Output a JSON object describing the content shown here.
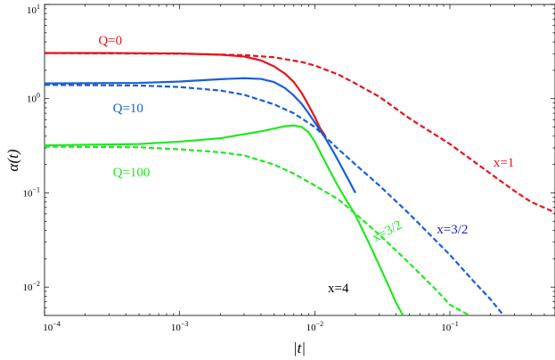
{
  "chart_data": {
    "type": "line",
    "xlabel": "|t|",
    "ylabel": "α(t)",
    "xscale": "log",
    "yscale": "log",
    "xlim": [
      0.0001,
      0.6
    ],
    "ylim": [
      0.005,
      10
    ],
    "x_ticks": [
      {
        "value": 0.0001,
        "label_base": "10",
        "label_exp": "−4"
      },
      {
        "value": 0.001,
        "label_base": "10",
        "label_exp": "−3"
      },
      {
        "value": 0.01,
        "label_base": "10",
        "label_exp": "−2"
      },
      {
        "value": 0.1,
        "label_base": "10",
        "label_exp": "−1"
      }
    ],
    "y_ticks": [
      {
        "value": 10,
        "label_base": "10",
        "label_exp": "1"
      },
      {
        "value": 1,
        "label_base": "10",
        "label_exp": "0"
      },
      {
        "value": 0.1,
        "label_base": "10",
        "label_exp": "−1"
      },
      {
        "value": 0.01,
        "label_base": "10",
        "label_exp": "−2"
      }
    ],
    "grid": false,
    "series": [
      {
        "color": "#e8141c",
        "dash": false,
        "points": [
          [
            0.0001,
            3.05
          ],
          [
            0.0003,
            3.05
          ],
          [
            0.001,
            3.02
          ],
          [
            0.002,
            2.93
          ],
          [
            0.003,
            2.8
          ],
          [
            0.004,
            2.55
          ],
          [
            0.005,
            2.2
          ],
          [
            0.006,
            1.85
          ],
          [
            0.007,
            1.5
          ],
          [
            0.008,
            1.15
          ],
          [
            0.009,
            0.85
          ],
          [
            0.01,
            0.64
          ],
          [
            0.011,
            0.48
          ],
          [
            0.012,
            0.4
          ]
        ]
      },
      {
        "color": "#1a5fd8",
        "dash": false,
        "points": [
          [
            0.0001,
            1.45
          ],
          [
            0.0005,
            1.47
          ],
          [
            0.001,
            1.52
          ],
          [
            0.002,
            1.61
          ],
          [
            0.003,
            1.65
          ],
          [
            0.004,
            1.62
          ],
          [
            0.005,
            1.5
          ],
          [
            0.006,
            1.3
          ],
          [
            0.007,
            1.08
          ],
          [
            0.008,
            0.88
          ],
          [
            0.009,
            0.7
          ],
          [
            0.01,
            0.56
          ],
          [
            0.012,
            0.38
          ],
          [
            0.014,
            0.26
          ],
          [
            0.017,
            0.155
          ],
          [
            0.02,
            0.1
          ]
        ]
      },
      {
        "color": "#22e822",
        "dash": false,
        "points": [
          [
            0.0001,
            0.32
          ],
          [
            0.0005,
            0.33
          ],
          [
            0.001,
            0.35
          ],
          [
            0.002,
            0.38
          ],
          [
            0.004,
            0.45
          ],
          [
            0.006,
            0.51
          ],
          [
            0.007,
            0.52
          ],
          [
            0.008,
            0.5
          ],
          [
            0.009,
            0.44
          ],
          [
            0.01,
            0.35
          ],
          [
            0.012,
            0.21
          ],
          [
            0.015,
            0.115
          ],
          [
            0.02,
            0.058
          ],
          [
            0.025,
            0.03
          ],
          [
            0.03,
            0.017
          ],
          [
            0.035,
            0.0105
          ],
          [
            0.04,
            0.0068
          ],
          [
            0.045,
            0.005
          ]
        ]
      },
      {
        "color": "#e8141c",
        "dash": true,
        "points": [
          [
            0.0001,
            3.05
          ],
          [
            0.001,
            3.0
          ],
          [
            0.003,
            2.9
          ],
          [
            0.005,
            2.75
          ],
          [
            0.008,
            2.45
          ],
          [
            0.01,
            2.25
          ],
          [
            0.015,
            1.8
          ],
          [
            0.02,
            1.45
          ],
          [
            0.03,
            1.05
          ],
          [
            0.05,
            0.62
          ],
          [
            0.1,
            0.33
          ],
          [
            0.2,
            0.16
          ],
          [
            0.3,
            0.105
          ],
          [
            0.4,
            0.08
          ],
          [
            0.6,
            0.062
          ]
        ]
      },
      {
        "color": "#1a5fd8",
        "dash": true,
        "points": [
          [
            0.0001,
            1.4
          ],
          [
            0.0005,
            1.38
          ],
          [
            0.001,
            1.33
          ],
          [
            0.002,
            1.22
          ],
          [
            0.003,
            1.1
          ],
          [
            0.005,
            0.87
          ],
          [
            0.007,
            0.7
          ],
          [
            0.01,
            0.5
          ],
          [
            0.015,
            0.29
          ],
          [
            0.02,
            0.2
          ],
          [
            0.03,
            0.12
          ],
          [
            0.05,
            0.06
          ],
          [
            0.1,
            0.022
          ],
          [
            0.15,
            0.0115
          ],
          [
            0.2,
            0.0074
          ],
          [
            0.25,
            0.005
          ]
        ]
      },
      {
        "color": "#22e822",
        "dash": true,
        "points": [
          [
            0.0001,
            0.31
          ],
          [
            0.0005,
            0.305
          ],
          [
            0.001,
            0.29
          ],
          [
            0.002,
            0.27
          ],
          [
            0.003,
            0.25
          ],
          [
            0.005,
            0.2
          ],
          [
            0.007,
            0.16
          ],
          [
            0.01,
            0.12
          ],
          [
            0.015,
            0.085
          ],
          [
            0.02,
            0.06
          ],
          [
            0.03,
            0.036
          ],
          [
            0.05,
            0.018
          ],
          [
            0.08,
            0.0092
          ],
          [
            0.1,
            0.0065
          ],
          [
            0.14,
            0.005
          ]
        ]
      }
    ],
    "annotations": [
      {
        "text": "Q=0",
        "x": 0.00025,
        "y": 3.75,
        "color": "#e8141c",
        "anchor": "start",
        "rotate": 0
      },
      {
        "text": "Q=10",
        "x": 0.00032,
        "y": 0.72,
        "color": "#1a5fd8",
        "anchor": "start",
        "rotate": 0
      },
      {
        "text": "Q=100",
        "x": 0.00032,
        "y": 0.15,
        "color": "#22e822",
        "anchor": "start",
        "rotate": 0
      },
      {
        "text": "x=1",
        "x": 0.21,
        "y": 0.19,
        "color": "#e8141c",
        "anchor": "start",
        "rotate": 0
      },
      {
        "text": "x=3/2",
        "x": 0.08,
        "y": 0.037,
        "color": "#1a1acc",
        "anchor": "start",
        "rotate": 0
      },
      {
        "text": "x=3/2",
        "x": 0.028,
        "y": 0.03,
        "color": "#22e822",
        "anchor": "start",
        "rotate": -28
      },
      {
        "text": "x=4",
        "x": 0.0125,
        "y": 0.0088,
        "color": "#000000",
        "anchor": "start",
        "rotate": 0
      }
    ]
  }
}
